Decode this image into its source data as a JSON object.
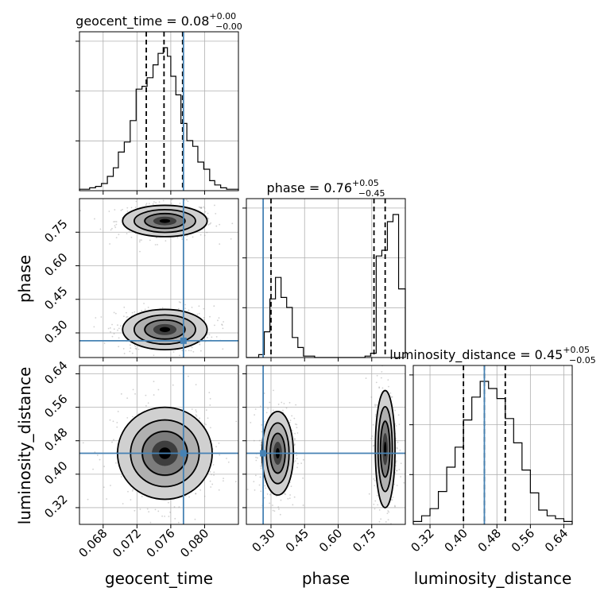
{
  "chart_data": {
    "type": "corner",
    "parameters": [
      "geocent_time",
      "phase",
      "luminosity_distance"
    ],
    "truths": {
      "geocent_time": 0.0775,
      "phase": 0.265,
      "luminosity_distance": 0.45
    },
    "titles": [
      {
        "prefix": "geocent_time = 0.08",
        "upper": "+0.00",
        "lower": "−0.00"
      },
      {
        "prefix": "phase = 0.76",
        "upper": "+0.05",
        "lower": "−0.45"
      },
      {
        "prefix": "luminosity_distance = 0.45",
        "upper": "+0.05",
        "lower": "−0.05"
      }
    ],
    "axes": {
      "geocent_time": {
        "range": [
          0.0652,
          0.084
        ],
        "ticks": [
          0.068,
          0.072,
          0.076,
          0.08
        ],
        "tick_labels": [
          "0.068",
          "0.072",
          "0.076",
          "0.080"
        ]
      },
      "phase": {
        "range": [
          0.19,
          0.9
        ],
        "ticks": [
          0.3,
          0.45,
          0.6,
          0.75
        ],
        "tick_labels": [
          "0.30",
          "0.45",
          "0.60",
          "0.75"
        ]
      },
      "luminosity_distance": {
        "range": [
          0.28,
          0.66
        ],
        "ticks": [
          0.32,
          0.4,
          0.48,
          0.56,
          0.64
        ],
        "tick_labels": [
          "0.32",
          "0.40",
          "0.48",
          "0.56",
          "0.64"
        ]
      }
    },
    "marginals": [
      {
        "parameter": "geocent_time",
        "bin_edges": [
          0.0652,
          0.0664,
          0.0671,
          0.0678,
          0.0685,
          0.0692,
          0.0698,
          0.0705,
          0.0712,
          0.0719,
          0.0726,
          0.0732,
          0.0739,
          0.0745,
          0.0751,
          0.0756,
          0.076,
          0.0766,
          0.0772,
          0.0779,
          0.0786,
          0.0792,
          0.0799,
          0.0806,
          0.0812,
          0.0819,
          0.0826,
          0.0832,
          0.084
        ],
        "counts": [
          0.01,
          0.02,
          0.03,
          0.05,
          0.1,
          0.16,
          0.27,
          0.34,
          0.49,
          0.71,
          0.73,
          0.79,
          0.88,
          0.96,
          1.0,
          0.94,
          0.8,
          0.67,
          0.47,
          0.35,
          0.31,
          0.2,
          0.15,
          0.07,
          0.04,
          0.02,
          0.01,
          0.01
        ],
        "quantiles": [
          0.0731,
          0.0752,
          0.0774
        ]
      },
      {
        "parameter": "phase",
        "bin_edges": [
          0.19,
          0.245,
          0.27,
          0.295,
          0.32,
          0.345,
          0.37,
          0.395,
          0.42,
          0.445,
          0.47,
          0.495,
          0.52,
          0.545,
          0.57,
          0.595,
          0.62,
          0.645,
          0.67,
          0.695,
          0.72,
          0.745,
          0.77,
          0.795,
          0.82,
          0.845,
          0.87,
          0.9
        ],
        "counts": [
          0.0,
          0.02,
          0.18,
          0.41,
          0.56,
          0.42,
          0.35,
          0.14,
          0.07,
          0.01,
          0.01,
          0.0,
          0.0,
          0.0,
          0.0,
          0.0,
          0.0,
          0.0,
          0.0,
          0.0,
          0.01,
          0.03,
          0.71,
          0.75,
          0.95,
          1.0,
          0.48
        ],
        "quantiles": [
          0.3,
          0.76,
          0.81
        ]
      },
      {
        "parameter": "luminosity_distance",
        "bin_edges": [
          0.28,
          0.3,
          0.32,
          0.34,
          0.36,
          0.38,
          0.4,
          0.42,
          0.44,
          0.46,
          0.48,
          0.5,
          0.52,
          0.54,
          0.56,
          0.58,
          0.6,
          0.62,
          0.64,
          0.66
        ],
        "counts": [
          0.02,
          0.06,
          0.11,
          0.23,
          0.4,
          0.54,
          0.73,
          0.89,
          1.0,
          0.95,
          0.88,
          0.74,
          0.57,
          0.38,
          0.22,
          0.1,
          0.06,
          0.04,
          0.02
        ],
        "quantiles": [
          0.4,
          0.45,
          0.5
        ]
      }
    ],
    "joint": [
      {
        "x": "geocent_time",
        "y": "phase",
        "modes": [
          {
            "cx": 0.0753,
            "cy": 0.8,
            "sx": 0.0025,
            "sy": 0.035
          },
          {
            "cx": 0.0753,
            "cy": 0.315,
            "sx": 0.0025,
            "sy": 0.045
          }
        ]
      },
      {
        "x": "geocent_time",
        "y": "luminosity_distance",
        "modes": [
          {
            "cx": 0.0753,
            "cy": 0.45,
            "sx": 0.0028,
            "sy": 0.055
          }
        ]
      },
      {
        "x": "phase",
        "y": "luminosity_distance",
        "modes": [
          {
            "cx": 0.33,
            "cy": 0.45,
            "sx": 0.035,
            "sy": 0.05
          },
          {
            "cx": 0.81,
            "cy": 0.46,
            "sx": 0.022,
            "sy": 0.07
          }
        ]
      }
    ],
    "grid": true
  }
}
